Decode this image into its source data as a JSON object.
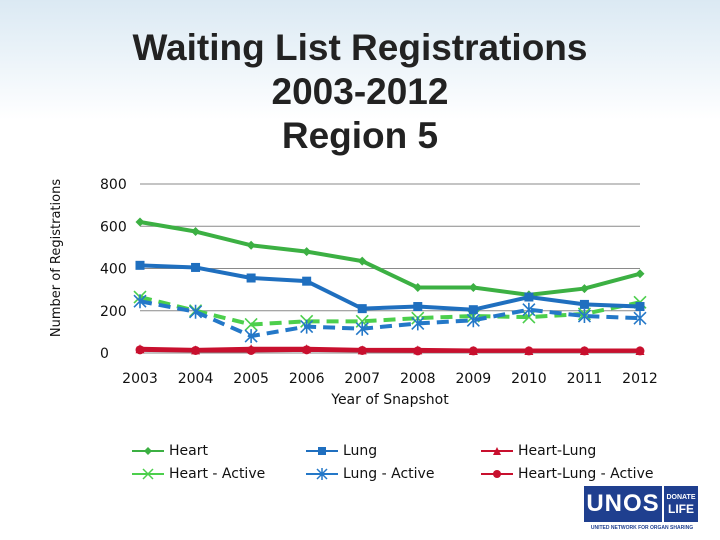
{
  "title_lines": [
    "Waiting List Registrations",
    "2003-2012",
    "Region 5"
  ],
  "chart_data": {
    "type": "line",
    "ylabel": "Number of Registrations",
    "xlabel": "Year of Snapshot",
    "ylim": [
      0,
      800
    ],
    "yticks": [
      0,
      200,
      400,
      600,
      800
    ],
    "x": [
      "2003",
      "2004",
      "2005",
      "2006",
      "2007",
      "2008",
      "2009",
      "2010",
      "2011",
      "2012"
    ],
    "grid": "horizontal",
    "legend": "bottom",
    "series": [
      {
        "name": "Heart",
        "color": "#3cb043",
        "dash": "solid",
        "marker": "diamond",
        "values": [
          620,
          575,
          510,
          480,
          435,
          310,
          310,
          275,
          305,
          375
        ]
      },
      {
        "name": "Heart - Active",
        "color": "#4ccf4c",
        "dash": "dashed",
        "marker": "x",
        "values": [
          265,
          200,
          135,
          150,
          150,
          165,
          175,
          170,
          185,
          240
        ]
      },
      {
        "name": "Lung",
        "color": "#1f6fbf",
        "dash": "solid",
        "marker": "square",
        "values": [
          415,
          405,
          355,
          340,
          210,
          220,
          205,
          265,
          230,
          220
        ]
      },
      {
        "name": "Lung - Active",
        "color": "#2478c8",
        "dash": "dashed",
        "marker": "star",
        "values": [
          245,
          195,
          80,
          125,
          115,
          140,
          155,
          205,
          175,
          165
        ]
      },
      {
        "name": "Heart-Lung",
        "color": "#c8102e",
        "dash": "solid",
        "marker": "triangle",
        "values": [
          20,
          15,
          20,
          20,
          15,
          15,
          12,
          12,
          12,
          12
        ]
      },
      {
        "name": "Heart-Lung - Active",
        "color": "#c8102e",
        "dash": "solid",
        "marker": "circle",
        "values": [
          15,
          12,
          12,
          15,
          12,
          10,
          10,
          10,
          10,
          10
        ]
      }
    ]
  },
  "logo": {
    "main": "UNOS",
    "side_top": "DONATE",
    "side_bottom": "LIFE",
    "sub": "UNITED NETWORK FOR ORGAN SHARING"
  }
}
